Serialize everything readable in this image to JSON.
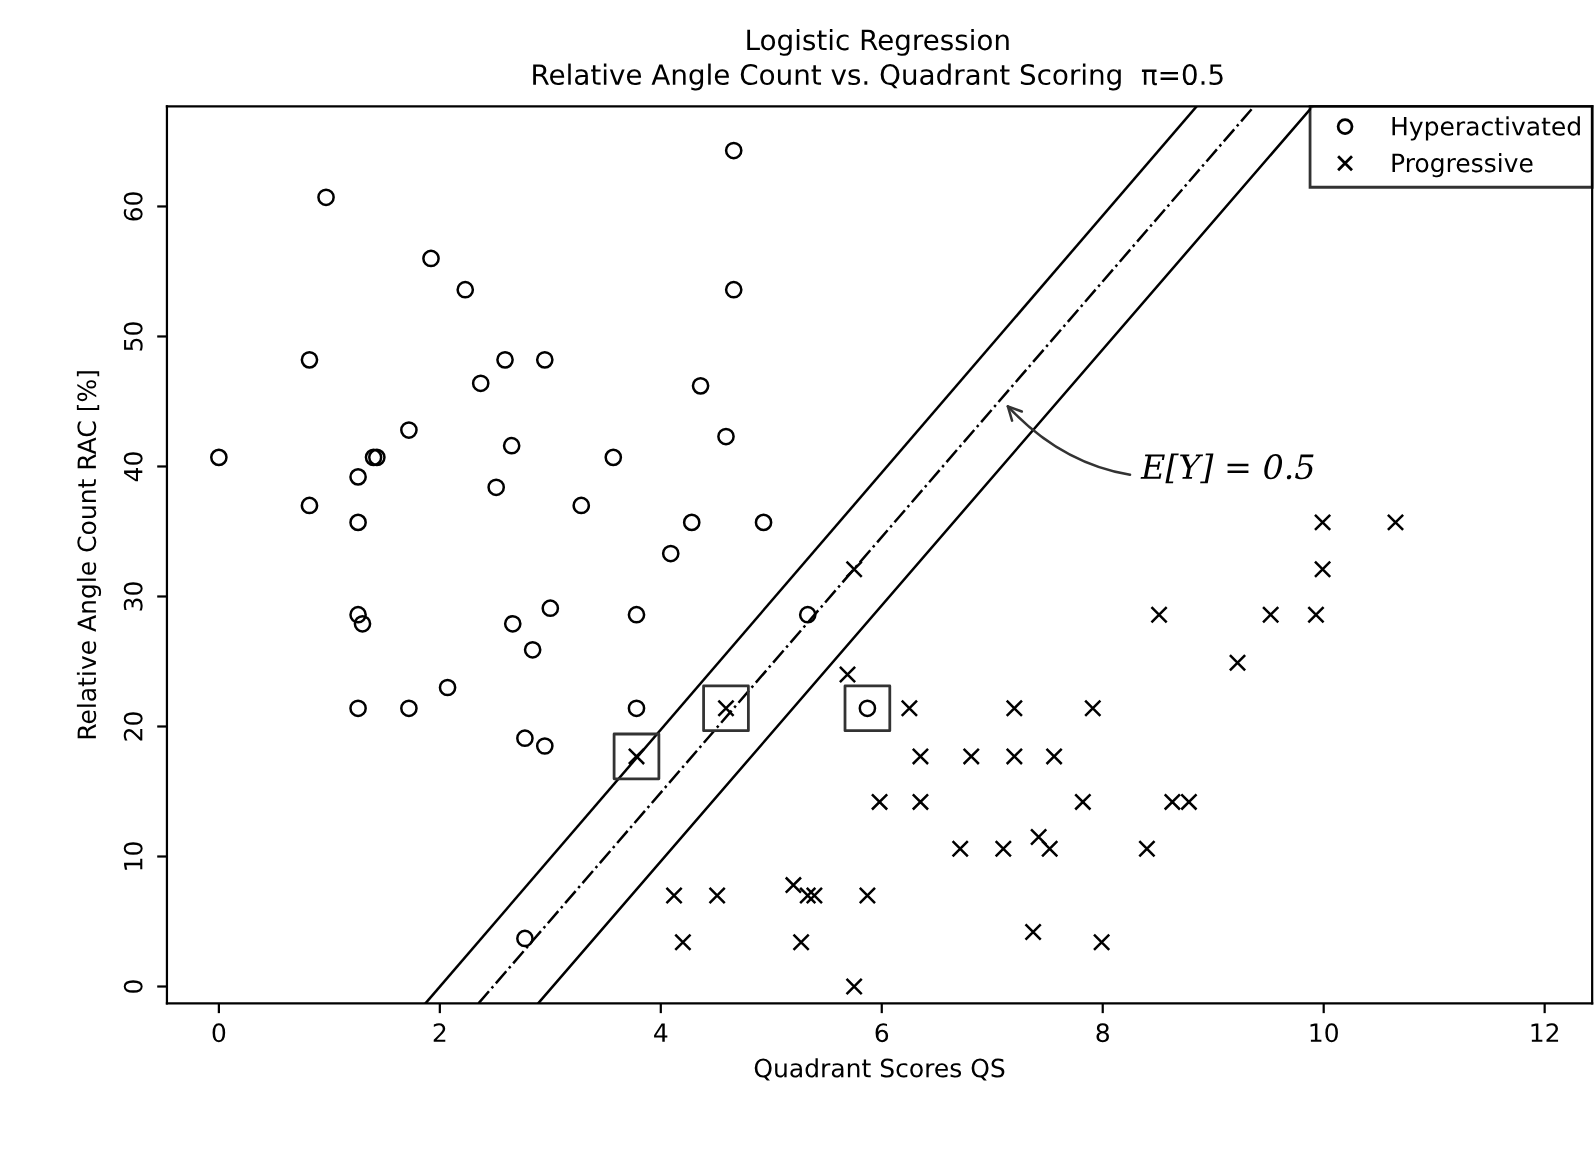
{
  "chart_data": {
    "type": "scatter",
    "title": "Logistic Regression",
    "subtitle": "Relative Angle Count vs. Quadrant Scoring  π=0.5",
    "xlabel": "Quadrant Scores QS",
    "ylabel": "Relative Angle Count RAC [%]",
    "xlim": [
      -0.47,
      12.43
    ],
    "ylim": [
      -1.3,
      67.7
    ],
    "xticks": [
      0,
      2,
      4,
      6,
      8,
      10,
      12
    ],
    "yticks": [
      0,
      10,
      20,
      30,
      40,
      50,
      60
    ],
    "grid": false,
    "legend": "top right",
    "series": [
      {
        "name": "Hyperactivated",
        "marker": "circle",
        "color": "#000000",
        "x": [
          0.0,
          0.97,
          0.82,
          0.82,
          1.26,
          1.26,
          1.4,
          1.43,
          1.26,
          1.3,
          1.26,
          1.72,
          1.72,
          1.92,
          2.07,
          2.23,
          2.37,
          2.51,
          2.59,
          2.65,
          2.66,
          2.77,
          2.84,
          2.95,
          2.95,
          3.0,
          2.77,
          3.28,
          3.57,
          3.78,
          3.78,
          4.09,
          4.28,
          4.36,
          4.59,
          4.66,
          4.66,
          4.93,
          5.33,
          5.87
        ],
        "values": [
          40.7,
          60.7,
          48.2,
          37.0,
          39.2,
          35.7,
          40.7,
          40.7,
          28.6,
          27.9,
          21.4,
          42.8,
          21.4,
          56.0,
          23.0,
          53.6,
          46.4,
          38.4,
          48.2,
          41.6,
          27.9,
          19.1,
          25.9,
          48.2,
          18.5,
          29.1,
          3.7,
          37.0,
          40.7,
          28.6,
          21.4,
          33.3,
          35.7,
          46.2,
          42.3,
          64.3,
          53.6,
          35.7,
          28.6,
          21.4
        ]
      },
      {
        "name": "Progressive",
        "marker": "cross",
        "color": "#000000",
        "x": [
          3.78,
          4.59,
          4.12,
          4.51,
          5.2,
          4.2,
          5.75,
          5.69,
          6.25,
          7.2,
          7.91,
          6.35,
          6.81,
          7.2,
          7.56,
          5.98,
          6.35,
          7.82,
          8.63,
          8.78,
          6.71,
          7.1,
          7.42,
          7.52,
          8.4,
          5.33,
          5.39,
          5.87,
          5.27,
          7.37,
          7.99,
          8.51,
          9.52,
          9.93,
          9.22,
          9.99,
          9.99,
          10.65,
          5.75
        ],
        "values": [
          17.7,
          21.4,
          7.0,
          7.0,
          7.8,
          3.4,
          32.1,
          24.0,
          21.4,
          21.4,
          21.4,
          17.7,
          17.7,
          17.7,
          17.7,
          14.2,
          14.2,
          14.2,
          14.2,
          14.2,
          10.6,
          10.6,
          11.5,
          10.6,
          10.6,
          7.0,
          7.0,
          7.0,
          3.4,
          4.2,
          3.4,
          28.6,
          28.6,
          28.6,
          24.9,
          32.1,
          35.7,
          35.7,
          0.0
        ]
      },
      {
        "marker": "square",
        "color": "#333333",
        "x": [
          3.78,
          4.59,
          5.87
        ],
        "values": [
          17.7,
          21.4,
          21.4
        ]
      },
      {
        "type": "line",
        "line_style": "solid",
        "color": "#000000",
        "x": [
          1.87,
          8.85
        ],
        "values": [
          -1.3,
          67.7
        ]
      },
      {
        "type": "line",
        "line_style": "dashdot",
        "color": "#000000",
        "x": [
          2.35,
          9.37
        ],
        "values": [
          -1.3,
          67.7
        ]
      },
      {
        "type": "line",
        "line_style": "solid",
        "color": "#000000",
        "x": [
          2.89,
          9.9
        ],
        "values": [
          -1.3,
          67.7
        ]
      }
    ],
    "annotations": [
      {
        "text": "E[Y] = 0.5",
        "x": 7.09,
        "y": 45.1
      }
    ]
  }
}
